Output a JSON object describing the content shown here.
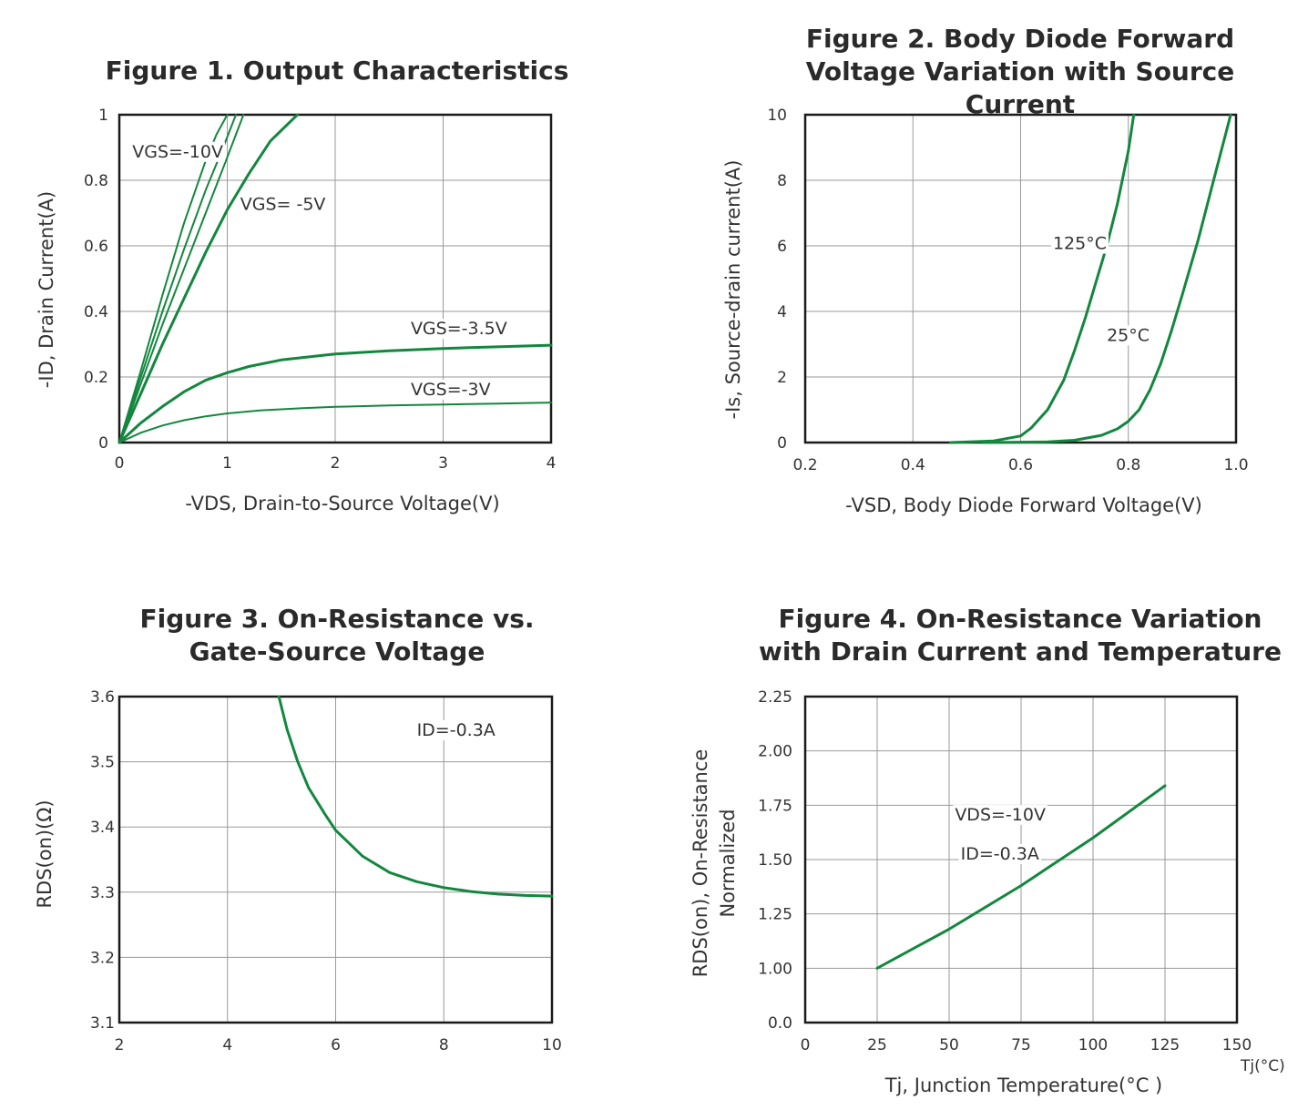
{
  "chart_data": [
    {
      "type": "line",
      "title": "Figure 1. Output Characteristics",
      "xlabel": "-VDS, Drain-to-Source Voltage(V)",
      "ylabel": "-ID,  Drain Current(A)",
      "xlim": [
        0,
        4
      ],
      "ylim": [
        0,
        1
      ],
      "xticks": [
        "0",
        "1",
        "2",
        "3",
        "4"
      ],
      "yticks": [
        "0",
        "0.2",
        "0.4",
        "0.6",
        "0.8",
        "1"
      ],
      "grid": true,
      "series": [
        {
          "name": "VGS=-10V (a)",
          "x": [
            0,
            0.2,
            0.4,
            0.6,
            0.8,
            0.9,
            1.0
          ],
          "y": [
            0,
            0.22,
            0.45,
            0.67,
            0.86,
            0.94,
            1.0
          ]
        },
        {
          "name": "VGS=-10V (b)",
          "x": [
            0,
            0.2,
            0.4,
            0.6,
            0.8,
            0.95,
            1.08
          ],
          "y": [
            0,
            0.2,
            0.4,
            0.59,
            0.77,
            0.89,
            1.0
          ]
        },
        {
          "name": "VGS=-5V (a)",
          "x": [
            0,
            0.2,
            0.4,
            0.6,
            0.8,
            1.0,
            1.15
          ],
          "y": [
            0,
            0.18,
            0.36,
            0.53,
            0.7,
            0.87,
            1.0
          ]
        },
        {
          "name": "VGS=-5V (b)",
          "x": [
            0,
            0.2,
            0.4,
            0.6,
            0.8,
            1.0,
            1.2,
            1.4,
            1.65
          ],
          "y": [
            0,
            0.15,
            0.3,
            0.44,
            0.58,
            0.71,
            0.82,
            0.92,
            1.0
          ]
        },
        {
          "name": "VGS=-3.5V",
          "x": [
            0,
            0.2,
            0.4,
            0.6,
            0.8,
            1.0,
            1.2,
            1.5,
            2.0,
            2.5,
            3.0,
            3.5,
            4.0
          ],
          "y": [
            0,
            0.06,
            0.11,
            0.155,
            0.19,
            0.213,
            0.232,
            0.252,
            0.27,
            0.28,
            0.287,
            0.292,
            0.297
          ]
        },
        {
          "name": "VGS=-3V",
          "x": [
            0,
            0.2,
            0.4,
            0.6,
            0.8,
            1.0,
            1.3,
            1.7,
            2.0,
            2.5,
            3.0,
            3.5,
            4.0
          ],
          "y": [
            0,
            0.03,
            0.052,
            0.068,
            0.08,
            0.089,
            0.098,
            0.105,
            0.109,
            0.113,
            0.116,
            0.119,
            0.122
          ]
        }
      ],
      "annotations": [
        {
          "text": "VGS=-10V",
          "x": 0.12,
          "y": 0.87
        },
        {
          "text": "VGS= -5V",
          "x": 1.12,
          "y": 0.71
        },
        {
          "text": "VGS=-3.5V",
          "x": 2.7,
          "y": 0.33
        },
        {
          "text": "VGS=-3V",
          "x": 2.7,
          "y": 0.145
        }
      ]
    },
    {
      "type": "line",
      "title": "Figure 2. Body Diode Forward Voltage Variation with Source Current",
      "xlabel": "-VSD, Body Diode Forward Voltage(V)",
      "ylabel": "-Is, Source-drain current(A)",
      "xlim": [
        0.2,
        1.0
      ],
      "ylim": [
        0,
        10
      ],
      "xticks": [
        "0.2",
        "0.4",
        "0.6",
        "0.8",
        "1.0"
      ],
      "yticks": [
        "0",
        "2",
        "4",
        "6",
        "8",
        "10"
      ],
      "grid": true,
      "series": [
        {
          "name": "125°C",
          "x": [
            0.47,
            0.55,
            0.6,
            0.62,
            0.65,
            0.68,
            0.7,
            0.72,
            0.74,
            0.76,
            0.78,
            0.8,
            0.81
          ],
          "y": [
            0,
            0.05,
            0.2,
            0.45,
            1.0,
            1.9,
            2.8,
            3.8,
            4.9,
            6.0,
            7.3,
            8.9,
            10.0
          ]
        },
        {
          "name": "25°C",
          "x": [
            0.53,
            0.65,
            0.7,
            0.75,
            0.78,
            0.8,
            0.82,
            0.84,
            0.86,
            0.88,
            0.9,
            0.93,
            0.96,
            0.99
          ],
          "y": [
            0,
            0.02,
            0.07,
            0.22,
            0.42,
            0.65,
            1.0,
            1.6,
            2.4,
            3.4,
            4.5,
            6.2,
            8.1,
            10.0
          ]
        }
      ],
      "annotations": [
        {
          "text": "125°C",
          "x": 0.66,
          "y": 5.9
        },
        {
          "text": "25°C",
          "x": 0.76,
          "y": 3.1
        }
      ]
    },
    {
      "type": "line",
      "title": "Figure 3. On-Resistance vs. Gate-Source Voltage",
      "xlabel": "",
      "ylabel": "RDS(on)(Ω)",
      "xlim": [
        2,
        10
      ],
      "ylim": [
        3.1,
        3.6
      ],
      "xticks": [
        "2",
        "4",
        "6",
        "8",
        "10"
      ],
      "yticks": [
        "3.1",
        "3.2",
        "3.3",
        "3.4",
        "3.5",
        "3.6"
      ],
      "grid": true,
      "series": [
        {
          "name": "ID=-0.3A",
          "x": [
            4.95,
            5.1,
            5.3,
            5.5,
            5.8,
            6.0,
            6.5,
            7.0,
            7.5,
            8.0,
            8.5,
            9.0,
            9.5,
            10.0
          ],
          "y": [
            3.6,
            3.55,
            3.5,
            3.46,
            3.42,
            3.395,
            3.355,
            3.33,
            3.316,
            3.307,
            3.301,
            3.297,
            3.295,
            3.294
          ]
        }
      ],
      "annotations": [
        {
          "text": "ID=-0.3A",
          "x": 7.5,
          "y": 3.54
        }
      ]
    },
    {
      "type": "line",
      "title": "Figure 4. On-Resistance Variation with Drain Current and Temperature",
      "xlabel": "Tj,  Junction  Temperature(°C )",
      "xunit": "Tj(°C)",
      "ylabel": "RDS(on), On-Resistance Normalized",
      "xlim": [
        0,
        150
      ],
      "yaxis_labels": [
        "0.0",
        "1.00",
        "1.25",
        "1.50",
        "1.75",
        "2.00",
        "2.25"
      ],
      "xticks": [
        "0",
        "25",
        "50",
        "75",
        "100",
        "125",
        "150"
      ],
      "grid": true,
      "series": [
        {
          "name": "VDS=-10V, ID=-0.3A",
          "x": [
            25,
            50,
            75,
            100,
            125
          ],
          "y": [
            1.0,
            1.18,
            1.38,
            1.6,
            1.84
          ]
        }
      ],
      "annotations": [
        {
          "text": "VDS=-10V",
          "x": 52,
          "y": 1.68
        },
        {
          "text": "ID=-0.3A",
          "x": 54,
          "y": 1.5
        }
      ]
    }
  ]
}
